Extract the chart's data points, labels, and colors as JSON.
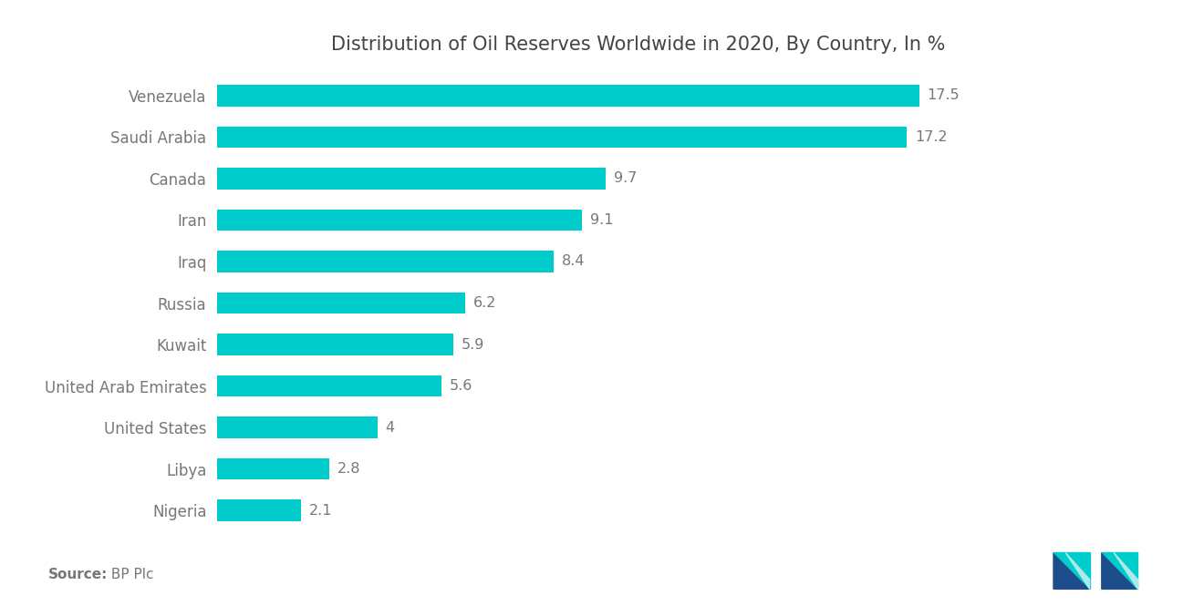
{
  "title": "Distribution of Oil Reserves Worldwide in 2020, By Country, In %",
  "source_label": "Source:",
  "source_text": " BP Plc",
  "categories": [
    "Nigeria",
    "Libya",
    "United States",
    "United Arab Emirates",
    "Kuwait",
    "Russia",
    "Iraq",
    "Iran",
    "Canada",
    "Saudi Arabia",
    "Venezuela"
  ],
  "values": [
    2.1,
    2.8,
    4.0,
    5.6,
    5.9,
    6.2,
    8.4,
    9.1,
    9.7,
    17.2,
    17.5
  ],
  "bar_color": "#00CCCC",
  "label_color": "#777777",
  "title_color": "#444444",
  "source_color": "#777777",
  "bg_color": "#ffffff",
  "value_fontsize": 11.5,
  "label_fontsize": 12,
  "title_fontsize": 15,
  "source_fontsize": 11,
  "bar_height": 0.52,
  "xlim": [
    0,
    21
  ],
  "logo_dark": "#1e4d8c",
  "logo_teal": "#00CCCC"
}
